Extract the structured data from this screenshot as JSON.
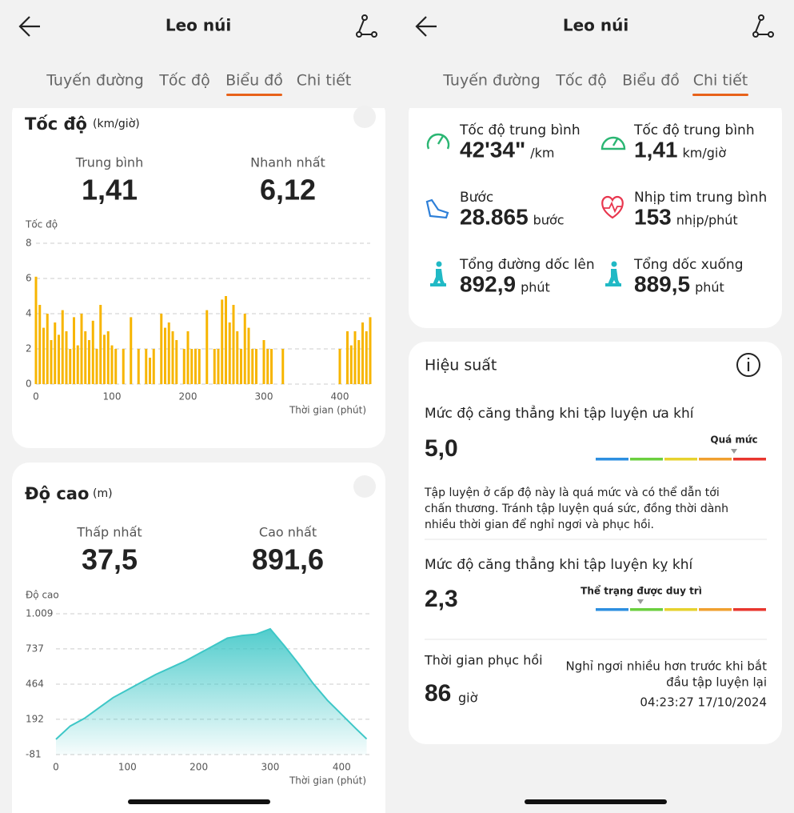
{
  "left": {
    "header": {
      "title": "Leo núi"
    },
    "tabs": [
      "Tuyến đường",
      "Tốc độ",
      "Biểu đồ",
      "Chi tiết"
    ],
    "active_tab": 2,
    "speed_card": {
      "title": "Tốc độ",
      "unit": "(km/giờ)",
      "stats": [
        {
          "label": "Trung bình",
          "value": "1,41"
        },
        {
          "label": "Nhanh nhất",
          "value": "6,12"
        }
      ],
      "chart": {
        "type": "bar",
        "y_label": "Tốc độ",
        "x_label": "Thời gian (phút)",
        "color": "#f7b500",
        "grid": true,
        "xlim": [
          0,
          440
        ],
        "ylim": [
          0,
          8
        ],
        "xticks": [
          0,
          100,
          200,
          300,
          400
        ],
        "yticks": [
          0,
          2,
          4,
          6,
          8
        ],
        "x": [
          0,
          5,
          10,
          15,
          20,
          25,
          30,
          35,
          40,
          45,
          50,
          55,
          60,
          65,
          70,
          75,
          80,
          85,
          90,
          95,
          100,
          105,
          110,
          115,
          120,
          125,
          130,
          135,
          140,
          145,
          150,
          155,
          160,
          165,
          170,
          175,
          180,
          185,
          190,
          195,
          200,
          205,
          210,
          215,
          220,
          225,
          230,
          235,
          240,
          245,
          250,
          255,
          260,
          265,
          270,
          275,
          280,
          285,
          290,
          295,
          300,
          305,
          310,
          315,
          320,
          325,
          330,
          335,
          340,
          345,
          350,
          355,
          360,
          365,
          370,
          375,
          380,
          385,
          390,
          395,
          400,
          405,
          410,
          415,
          420,
          425,
          430,
          435,
          440
        ],
        "values": [
          6.1,
          4.5,
          3.2,
          4.0,
          2.5,
          3.5,
          2.8,
          4.2,
          3.0,
          2.0,
          3.8,
          2.2,
          4.0,
          3.0,
          2.5,
          3.6,
          2.0,
          4.5,
          2.8,
          3.0,
          2.2,
          2.0,
          0,
          2.0,
          0,
          3.8,
          0,
          2.0,
          0,
          2.0,
          1.5,
          2.0,
          0,
          4.0,
          3.2,
          3.5,
          3.0,
          2.5,
          0,
          2.0,
          3.0,
          2.0,
          2.0,
          2.0,
          0,
          4.2,
          0,
          2.0,
          2.0,
          4.8,
          5.0,
          3.5,
          4.5,
          3.0,
          2.0,
          4.0,
          3.2,
          2.0,
          2.0,
          0,
          2.5,
          2.0,
          2.0,
          0,
          0,
          2.0,
          0,
          0,
          0,
          0,
          0,
          0,
          0,
          0,
          0,
          0,
          0,
          0,
          0,
          0,
          2.0,
          0,
          3.0,
          2.2,
          3.0,
          2.5,
          3.5,
          3.0,
          3.8
        ]
      }
    },
    "altitude_card": {
      "title": "Độ cao",
      "unit": "(m)",
      "stats": [
        {
          "label": "Thấp nhất",
          "value": "37,5"
        },
        {
          "label": "Cao nhất",
          "value": "891,6"
        }
      ],
      "chart": {
        "type": "area",
        "y_label": "Độ cao",
        "x_label": "Thời gian (phút)",
        "color": "#3ec7c7",
        "grid": true,
        "xlim": [
          0,
          440
        ],
        "ylim": [
          -81,
          1009
        ],
        "xticks": [
          0,
          100,
          200,
          300,
          400
        ],
        "yticks": [
          {
            "value": 1009,
            "label": "1.009"
          },
          737,
          464,
          192,
          -81
        ],
        "x": [
          0,
          20,
          40,
          60,
          80,
          100,
          120,
          140,
          160,
          180,
          200,
          220,
          240,
          260,
          280,
          300,
          320,
          340,
          360,
          380,
          400,
          420,
          435
        ],
        "values": [
          37.5,
          140,
          200,
          280,
          360,
          420,
          480,
          540,
          590,
          640,
          700,
          760,
          820,
          840,
          850,
          891.6,
          760,
          620,
          470,
          340,
          230,
          120,
          40
        ]
      }
    }
  },
  "right": {
    "header": {
      "title": "Leo núi"
    },
    "tabs": [
      "Tuyến đường",
      "Tốc độ",
      "Biểu đồ",
      "Chi tiết"
    ],
    "active_tab": 3,
    "metrics": [
      {
        "label": "Tốc độ trung bình",
        "value": "42'34\"",
        "unit": "/km"
      },
      {
        "label": "Tốc độ trung bình",
        "value": "1,41",
        "unit": "km/giờ"
      },
      {
        "label": "Bước",
        "value": "28.865",
        "unit": "bước"
      },
      {
        "label": "Nhịp tim trung bình",
        "value": "153",
        "unit": "nhịp/phút"
      },
      {
        "label": "Tổng đường dốc lên",
        "value": "892,9",
        "unit": "phút"
      },
      {
        "label": "Tổng dốc xuống",
        "value": "889,5",
        "unit": "phút"
      }
    ],
    "performance": {
      "title": "Hiệu suất",
      "scale_colors": [
        "#2d8fe0",
        "#6bcf3f",
        "#e6d22e",
        "#f0a030",
        "#e8362e"
      ],
      "aerobic": {
        "label": "Mức độ căng thẳng khi tập luyện ưa khí",
        "value": "5,0",
        "level": "Quá mức"
      },
      "description": [
        "Tập luyện ở cấp độ này là quá mức và có thể dẫn tới",
        "chấn thương. Tránh tập luyện quá sức, đồng thời dành",
        "nhiều thời gian để nghỉ ngơi và phục hồi."
      ],
      "anaerobic": {
        "label": "Mức độ căng thẳng khi tập luyện kỵ khí",
        "value": "2,3",
        "level": "Thể trạng được duy trì"
      },
      "recovery": {
        "label": "Thời gian phục hồi",
        "value": "86",
        "unit": "giờ",
        "note": [
          "Nghỉ ngơi nhiều hơn trước khi bắt",
          "đầu tập luyện lại"
        ],
        "date": "04:23:27 17/10/2024"
      }
    }
  }
}
